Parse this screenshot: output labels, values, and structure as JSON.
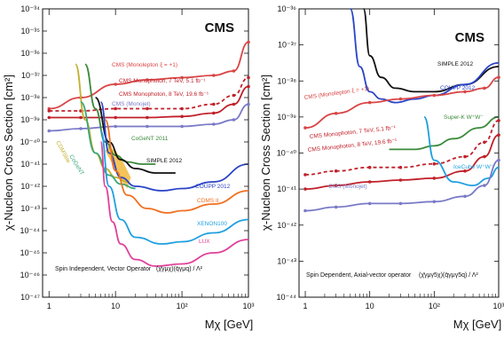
{
  "chart_data": [
    {
      "type": "line",
      "panel_tag": "CMS",
      "xlabel": "Mχ [GeV]",
      "ylabel": "χ-Nucleon Cross Section [cm²]",
      "xscale": "log",
      "yscale": "log",
      "xlim": [
        0.8,
        1000
      ],
      "ylim_exponents": [
        -47,
        -34
      ],
      "x_ticks": [
        {
          "value": 1,
          "label": "1"
        },
        {
          "value": 10,
          "label": "10"
        },
        {
          "value": 100,
          "label": "10²"
        },
        {
          "value": 1000,
          "label": "10³"
        }
      ],
      "y_tick_labels": [
        "10⁻³⁴",
        "10⁻³⁵",
        "10⁻³⁶",
        "10⁻³⁷",
        "10⁻³⁸",
        "10⁻³⁹",
        "10⁻⁴⁰",
        "10⁻⁴¹",
        "10⁻⁴²",
        "10⁻⁴³",
        "10⁻⁴⁴",
        "10⁻⁴⁵",
        "10⁻⁴⁶",
        "10⁻⁴⁷"
      ],
      "caption": "Spin Independent, Vector Operator",
      "operator": "(χ̄γμχ)(q̄γμq) / Λ²",
      "series": [
        {
          "name": "CMS (Monolepton ξ = +1)",
          "color": "#d94545",
          "dashed": false,
          "x": [
            1,
            3,
            10,
            30,
            100,
            300,
            600,
            1000
          ],
          "y": [
            -38.5,
            -38.0,
            -37.4,
            -37.2,
            -37.1,
            -37.0,
            -36.8,
            -35.5
          ]
        },
        {
          "name": "CMS Monophoton, 7 TeV, 5.1 fb⁻¹",
          "color": "#c0202a",
          "dashed": true,
          "x": [
            1,
            3,
            10,
            30,
            100,
            300,
            600,
            1000
          ],
          "y": [
            -38.6,
            -38.6,
            -38.5,
            -38.5,
            -38.5,
            -38.3,
            -37.9,
            -37.1
          ]
        },
        {
          "name": "CMS Monophoton, 8 TeV, 19.6 fb⁻¹",
          "color": "#c0202a",
          "dashed": false,
          "x": [
            1,
            3,
            10,
            30,
            100,
            300,
            600,
            1000
          ],
          "y": [
            -38.9,
            -38.9,
            -38.9,
            -38.9,
            -38.85,
            -38.7,
            -38.3,
            -37.5
          ]
        },
        {
          "name": "CMS (Monojet)",
          "color": "#7a7ac8",
          "dashed": false,
          "x": [
            1,
            3,
            10,
            30,
            100,
            300,
            600,
            1000
          ],
          "y": [
            -39.5,
            -39.4,
            -39.3,
            -39.3,
            -39.3,
            -39.2,
            -39.0,
            -38.3
          ]
        },
        {
          "name": "CoGeNT 2011",
          "color": "#3a8a3a",
          "dashed": false,
          "x": [
            3.5,
            5,
            7,
            10,
            15,
            25,
            40
          ],
          "y": [
            -36.5,
            -38.5,
            -40.0,
            -40.6,
            -40.9,
            -41.0,
            -41.0
          ]
        },
        {
          "name": "SIMPLE 2012",
          "color": "#111111",
          "dashed": false,
          "x": [
            5,
            8,
            12,
            20,
            40,
            80
          ],
          "y": [
            -38.0,
            -40.0,
            -40.8,
            -41.2,
            -41.4,
            -41.4
          ]
        },
        {
          "name": "CDMSlite",
          "color": "#c4b030",
          "dashed": false,
          "x": [
            2.5,
            3.5,
            5,
            7,
            10,
            15
          ],
          "y": [
            -36.5,
            -39.0,
            -40.5,
            -41.2,
            -41.6,
            -41.8
          ]
        },
        {
          "name": "CoGeNT",
          "color": "#3aa878",
          "dashed": false,
          "x": [
            3,
            5,
            8,
            12,
            20
          ],
          "y": [
            -38.2,
            -40.5,
            -41.5,
            -41.9,
            -42.1
          ]
        },
        {
          "name": "COUPP 2012",
          "color": "#2a44c8",
          "dashed": false,
          "x": [
            6,
            8,
            12,
            20,
            50,
            100,
            300,
            1000
          ],
          "y": [
            -38.2,
            -40.5,
            -41.6,
            -42.0,
            -42.2,
            -42.1,
            -41.8,
            -41.0
          ]
        },
        {
          "name": "CDMS II",
          "color": "#f07020",
          "dashed": false,
          "x": [
            7,
            10,
            15,
            30,
            60,
            100,
            300,
            1000
          ],
          "y": [
            -39.0,
            -41.3,
            -42.4,
            -43.0,
            -43.2,
            -43.1,
            -42.8,
            -42.2
          ]
        },
        {
          "name": "XENON100",
          "color": "#1f9fe0",
          "dashed": false,
          "x": [
            6,
            8,
            12,
            20,
            50,
            100,
            300,
            1000
          ],
          "y": [
            -39.5,
            -42.0,
            -43.5,
            -44.3,
            -44.6,
            -44.5,
            -44.1,
            -43.5
          ]
        },
        {
          "name": "LUX",
          "color": "#e0409a",
          "dashed": false,
          "x": [
            6,
            7,
            9,
            12,
            20,
            40,
            100,
            300,
            1000
          ],
          "y": [
            -40.0,
            -42.0,
            -43.6,
            -44.6,
            -45.3,
            -45.6,
            -45.5,
            -45.0,
            -44.4
          ]
        }
      ],
      "regions": [
        {
          "name": "CoGeNT signal region",
          "color": "#f0b020",
          "x": [
            7,
            8,
            10,
            13,
            17,
            15,
            12,
            9
          ],
          "y": [
            -40.4,
            -40.2,
            -40.4,
            -40.9,
            -41.6,
            -42.1,
            -41.7,
            -41.0
          ]
        }
      ]
    },
    {
      "type": "line",
      "panel_tag": "CMS",
      "xlabel": "Mχ [GeV]",
      "ylabel": "χ-Nucleon Cross Section [cm²]",
      "xscale": "log",
      "yscale": "log",
      "xlim": [
        0.8,
        1000
      ],
      "ylim_exponents": [
        -44,
        -36
      ],
      "x_ticks": [
        {
          "value": 1,
          "label": "1"
        },
        {
          "value": 10,
          "label": "10"
        },
        {
          "value": 100,
          "label": "10²"
        },
        {
          "value": 1000,
          "label": "10³"
        }
      ],
      "y_tick_labels": [
        "10⁻³⁶",
        "10⁻³⁷",
        "10⁻³⁸",
        "10⁻³⁹",
        "10⁻⁴⁰",
        "10⁻⁴¹",
        "10⁻⁴²",
        "10⁻⁴³",
        "10⁻⁴⁴"
      ],
      "caption": "Spin Dependent, Axial-vector operator",
      "operator": "(χ̄γμγ5χ)(q̄γμγ5q) / Λ²",
      "series": [
        {
          "name": "SIMPLE 2012",
          "color": "#111111",
          "dashed": false,
          "x": [
            8,
            10,
            15,
            25,
            50,
            100,
            300,
            1000
          ],
          "y": [
            -36.0,
            -37.3,
            -37.9,
            -38.2,
            -38.3,
            -38.3,
            -38.1,
            -37.6
          ]
        },
        {
          "name": "COUPP 2012",
          "color": "#2a44c8",
          "dashed": false,
          "x": [
            5,
            7,
            10,
            15,
            25,
            50,
            100,
            300,
            1000
          ],
          "y": [
            -36.0,
            -37.6,
            -38.3,
            -38.5,
            -38.6,
            -38.5,
            -38.4,
            -38.1,
            -37.5
          ]
        },
        {
          "name": "CMS (Monolepton ξ = +1)",
          "color": "#d94545",
          "dashed": false,
          "x": [
            1,
            3,
            10,
            30,
            100,
            300,
            600,
            1000
          ],
          "y": [
            -39.3,
            -38.9,
            -38.6,
            -38.5,
            -38.4,
            -38.3,
            -38.2,
            -37.9
          ]
        },
        {
          "name": "Super-K W⁺W⁻",
          "color": "#3a8a3a",
          "dashed": false,
          "x": [
            20,
            50,
            100,
            200,
            500,
            1000
          ],
          "y": [
            -39.9,
            -39.9,
            -39.8,
            -39.6,
            -39.3,
            -39.0
          ]
        },
        {
          "name": "CMS Monophoton, 7 TeV, 5.1 fb⁻¹",
          "color": "#c0202a",
          "dashed": true,
          "x": [
            1,
            3,
            10,
            30,
            100,
            300,
            600,
            1000
          ],
          "y": [
            -40.6,
            -40.5,
            -40.4,
            -40.4,
            -40.3,
            -40.1,
            -39.7,
            -39.1
          ]
        },
        {
          "name": "CMS Monophoton, 8 TeV, 19.6 fb⁻¹",
          "color": "#c0202a",
          "dashed": false,
          "x": [
            1,
            3,
            10,
            30,
            100,
            300,
            600,
            1000
          ],
          "y": [
            -41.0,
            -40.9,
            -40.8,
            -40.75,
            -40.7,
            -40.5,
            -40.1,
            -39.5
          ]
        },
        {
          "name": "IceCube W⁺W⁻",
          "color": "#1f9fe0",
          "dashed": false,
          "x": [
            70,
            100,
            200,
            400,
            700,
            1000
          ],
          "y": [
            -39.0,
            -40.2,
            -40.8,
            -40.9,
            -40.7,
            -40.4
          ]
        },
        {
          "name": "CMS (Monojet)",
          "color": "#7a7ac8",
          "dashed": false,
          "x": [
            1,
            3,
            10,
            30,
            100,
            300,
            600,
            1000
          ],
          "y": [
            -41.6,
            -41.5,
            -41.4,
            -41.4,
            -41.35,
            -41.2,
            -40.9,
            -40.2
          ]
        }
      ],
      "regions": []
    }
  ],
  "labels_left": [
    {
      "text": "CMS (Monolepton ξ = +1)",
      "series": "CMS (Monolepton ξ = +1)"
    },
    {
      "text": "CMS Monophoton, 7 TeV, 5.1 fb⁻¹",
      "series": "CMS Monophoton, 7 TeV, 5.1 fb⁻¹"
    },
    {
      "text": "CMS Monophoton, 8 TeV, 19.6 fb⁻¹",
      "series": "CMS Monophoton, 8 TeV, 19.6 fb⁻¹"
    },
    {
      "text": "CMS (Monojet)",
      "series": "CMS (Monojet)"
    },
    {
      "text": "CoGeNT 2011",
      "series": "CoGeNT 2011"
    },
    {
      "text": "SIMPLE 2012",
      "series": "SIMPLE 2012"
    },
    {
      "text": "CDMSlite",
      "series": "CDMSlite"
    },
    {
      "text": "CoGeNT",
      "series": "CoGeNT"
    },
    {
      "text": "COUPP 2012",
      "series": "COUPP 2012"
    },
    {
      "text": "CDMS II",
      "series": "CDMS II"
    },
    {
      "text": "XENON100",
      "series": "XENON100"
    },
    {
      "text": "LUX",
      "series": "LUX"
    }
  ],
  "labels_right": [
    {
      "text": "SIMPLE 2012",
      "series": "SIMPLE 2012"
    },
    {
      "text": "COUPP 2012",
      "series": "COUPP 2012"
    },
    {
      "text": "CMS (Monolepton ξ = +1)",
      "series": "CMS (Monolepton ξ = +1)"
    },
    {
      "text": "Super-K W⁺W⁻",
      "series": "Super-K W⁺W⁻"
    },
    {
      "text": "CMS Monophoton, 7 TeV, 5.1 fb⁻¹",
      "series": "CMS Monophoton, 7 TeV, 5.1 fb⁻¹"
    },
    {
      "text": "CMS Monophoton, 8 TeV, 19.6 fb⁻¹",
      "series": "CMS Monophoton, 8 TeV, 19.6 fb⁻¹"
    },
    {
      "text": "IceCube W⁺W⁻",
      "series": "IceCube W⁺W⁻"
    },
    {
      "text": "CMS (Monojet)",
      "series": "CMS (Monojet)"
    }
  ]
}
